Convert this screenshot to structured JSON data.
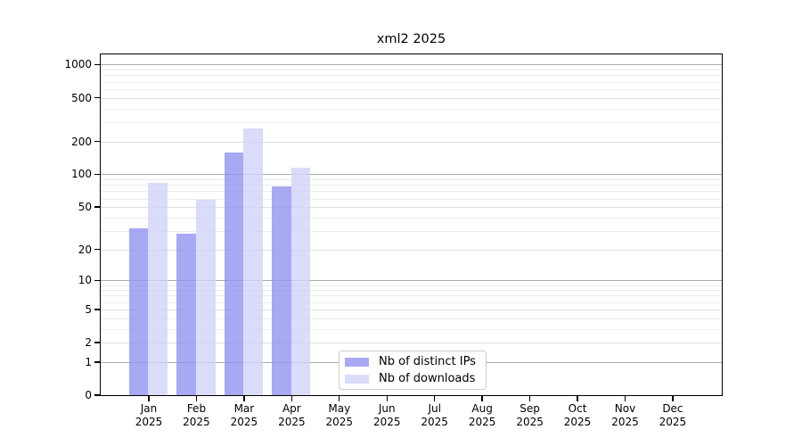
{
  "title": "xml2 2025",
  "chart_data": {
    "type": "bar",
    "title": "xml2 2025",
    "categories": [
      "Jan",
      "Feb",
      "Mar",
      "Apr",
      "May",
      "Jun",
      "Jul",
      "Aug",
      "Sep",
      "Oct",
      "Nov",
      "Dec"
    ],
    "year_label": "2025",
    "series": [
      {
        "name": "Nb of distinct IPs",
        "color": "#9292f0",
        "values": [
          32,
          28,
          160,
          78,
          0,
          0,
          0,
          0,
          0,
          0,
          0,
          0
        ]
      },
      {
        "name": "Nb of downloads",
        "color": "#d2d2f9",
        "values": [
          84,
          58,
          262,
          116,
          0,
          0,
          0,
          0,
          0,
          0,
          0,
          0
        ]
      }
    ],
    "y_ticks": [
      0,
      1,
      2,
      5,
      10,
      20,
      50,
      100,
      200,
      500,
      1000
    ],
    "scale": "log1p",
    "ylim": [
      0,
      1280
    ],
    "grid": true,
    "legend_position": "bottom-center",
    "colors": {
      "grid_major": "#ababab",
      "grid_minor": "#ececec",
      "axis": "#000000",
      "background": "#ffffff"
    }
  },
  "legend": {
    "items": [
      {
        "label": "Nb of distinct IPs"
      },
      {
        "label": "Nb of downloads"
      }
    ]
  }
}
